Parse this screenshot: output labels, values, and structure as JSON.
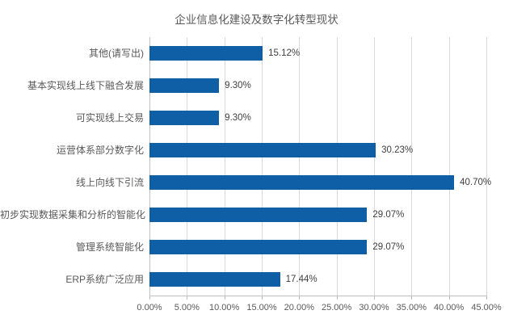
{
  "chart_data": {
    "type": "bar",
    "orientation": "horizontal",
    "title": "企业信息化建设及数字化转型现状",
    "categories": [
      "其他(请写出)",
      "基本实现线上线下融合发展",
      "可实现线上交易",
      "运营体系部分数字化",
      "线上向线下引流",
      "初步实现数据采集和分析的智能化",
      "管理系统智能化",
      "ERP系统广泛应用"
    ],
    "values": [
      15.12,
      9.3,
      9.3,
      30.23,
      40.7,
      29.07,
      29.07,
      17.44
    ],
    "data_labels": [
      "15.12%",
      "9.30%",
      "9.30%",
      "30.23%",
      "40.70%",
      "29.07%",
      "29.07%",
      "17.44%"
    ],
    "xlabel": "",
    "ylabel": "",
    "xlim": [
      0,
      45
    ],
    "x_ticks": [
      "0.00%",
      "5.00%",
      "10.00%",
      "15.00%",
      "20.00%",
      "25.00%",
      "30.00%",
      "35.00%",
      "40.00%",
      "45.00%"
    ],
    "grid": "vertical-only",
    "legend": "none",
    "colors": {
      "bar": "#0E5FA6",
      "gridline": "#D9D9D9",
      "axis_line": "#BFBFBF",
      "tick_label": "#595959",
      "category_label": "#595959",
      "data_label": "#404040",
      "title": "#595959",
      "background": "#FFFFFF"
    }
  }
}
